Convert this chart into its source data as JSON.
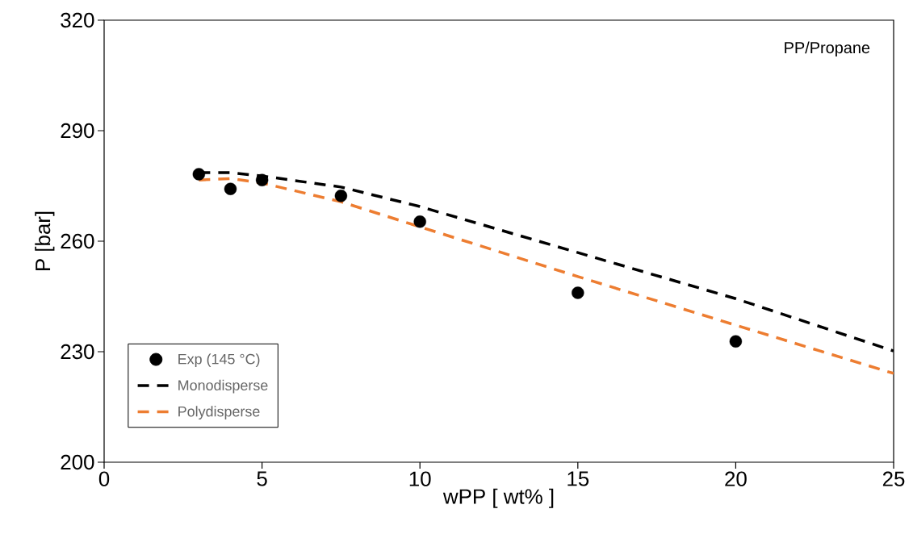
{
  "chart_data": {
    "type": "line",
    "xlabel": "wPP [ wt% ]",
    "ylabel": "P  [bar]",
    "xlim": [
      0,
      25
    ],
    "ylim": [
      200,
      320
    ],
    "xticks": [
      0,
      5,
      10,
      15,
      20,
      25
    ],
    "yticks": [
      200,
      230,
      260,
      290,
      320
    ],
    "legend": "bottom left",
    "marker": "none",
    "annotations": [
      "PP/Propane"
    ],
    "series": [
      {
        "name": "Exp (145 °C)",
        "type": "scatter",
        "marker": "circle",
        "color": "#000000",
        "x": [
          3,
          4,
          5,
          7.5,
          10,
          15,
          20
        ],
        "values": [
          278.2,
          274.2,
          276.6,
          272.3,
          265.3,
          246.0,
          232.8
        ]
      },
      {
        "name": "Monodisperse",
        "line_style": "dashed",
        "color": "#000000",
        "x": [
          3,
          4,
          5,
          7.5,
          10,
          15,
          20,
          25
        ],
        "values": [
          278.6,
          278.6,
          277.7,
          274.7,
          269.4,
          256.9,
          244.4,
          230.2
        ]
      },
      {
        "name": "Polydisperse",
        "line_style": "dashed",
        "color": "#ed7d31",
        "x": [
          3,
          4,
          5,
          7.5,
          10,
          15,
          20,
          25
        ],
        "values": [
          276.6,
          277.0,
          275.8,
          270.7,
          263.9,
          250.4,
          237.2,
          224.1
        ]
      }
    ]
  }
}
